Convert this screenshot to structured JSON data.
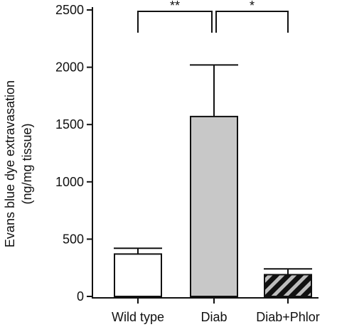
{
  "chart_data": {
    "type": "bar",
    "title": "",
    "xlabel": "",
    "ylabel_lines": [
      "Evans blue dye extravasation",
      "(ng/mg tissue)"
    ],
    "categories": [
      "Wild type",
      "Diab",
      "Diab+Phlor"
    ],
    "series": [
      {
        "values": [
          370,
          1570,
          190
        ],
        "error_upper": [
          420,
          2020,
          240
        ],
        "fills": [
          "white",
          "#c8c8c8",
          "hatched-black-grey"
        ]
      }
    ],
    "ylim": [
      0,
      2500
    ],
    "yticks": [
      "0",
      "500",
      "1000",
      "1500",
      "2000",
      "2500"
    ],
    "significance": [
      {
        "from": "Wild type",
        "to": "Diab",
        "label": "**"
      },
      {
        "from": "Diab",
        "to": "Diab+Phlor",
        "label": "*"
      }
    ],
    "grid": false,
    "legend": "none"
  }
}
